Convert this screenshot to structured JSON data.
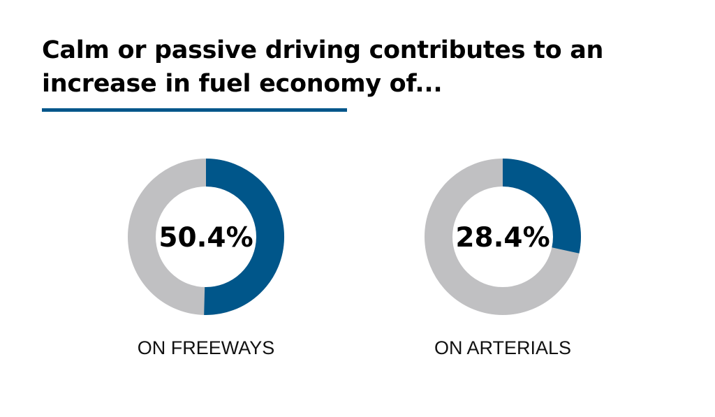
{
  "title": {
    "line1": "Calm or passive driving contributes to an",
    "line2": "increase in fuel economy of..."
  },
  "colors": {
    "accent": "#00568a",
    "track": "#c0c0c2",
    "text": "#000000"
  },
  "chart_data": [
    {
      "type": "pie",
      "variant": "donut",
      "value": 50.4,
      "value_label": "50.4%",
      "label": "ON FREEWAYS"
    },
    {
      "type": "pie",
      "variant": "donut",
      "value": 28.4,
      "value_label": "28.4%",
      "label": "ON ARTERIALS"
    }
  ]
}
